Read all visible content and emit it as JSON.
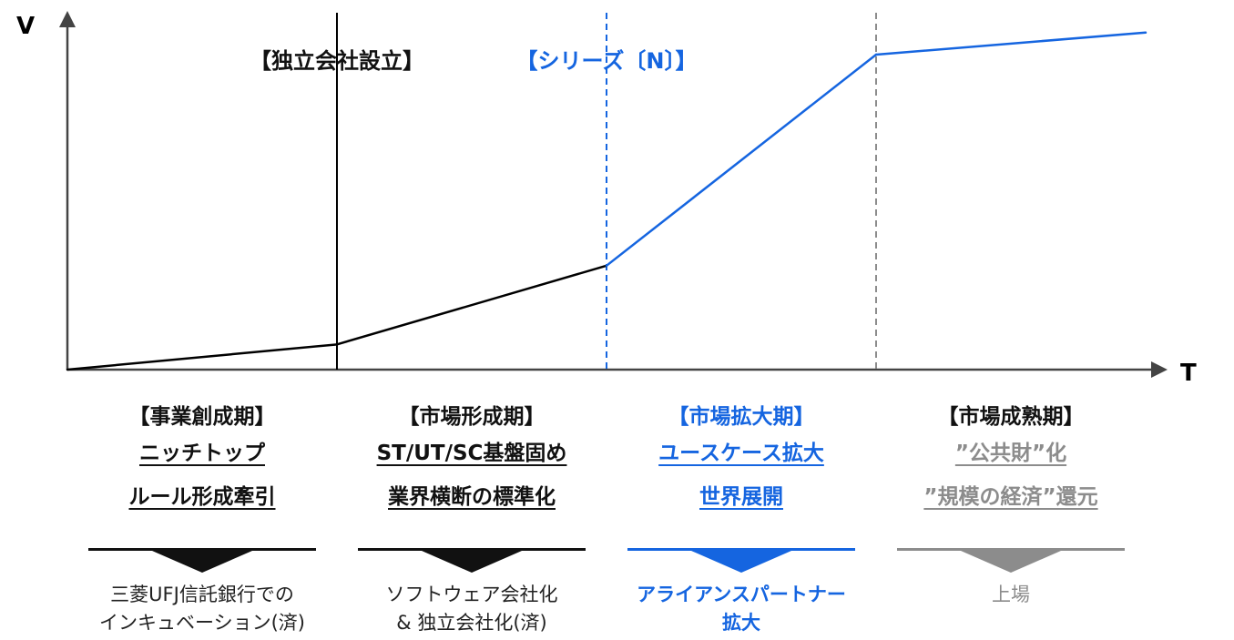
{
  "axes": {
    "y_label": "V",
    "x_label": "T"
  },
  "markers": [
    {
      "label": "【独立会社設立】",
      "color": "#000000",
      "style": "solid"
    },
    {
      "label": "【シリーズ〔N〕】",
      "color": "#1565e0",
      "style": "dashed"
    },
    {
      "label": "",
      "color": "#8c8c8c",
      "style": "dashed"
    }
  ],
  "curve": [
    {
      "t": 0,
      "v": 0.0
    },
    {
      "t": 1,
      "v": 0.08
    },
    {
      "t": 2,
      "v": 0.33
    },
    {
      "t": 3,
      "v": 1.0
    },
    {
      "t": 4,
      "v": 1.07
    }
  ],
  "phases": [
    {
      "title": "【事業創成期】",
      "lines": [
        "ニッチトップ",
        "ルール形成牽引"
      ],
      "result": [
        "三菱UFJ信託銀行での",
        "インキュベーション(済)"
      ],
      "color": "#111111",
      "result_bold": false,
      "result_color": "#222222"
    },
    {
      "title": "【市場形成期】",
      "lines": [
        "ST/UT/SC基盤固め",
        "業界横断の標準化"
      ],
      "result": [
        "ソフトウェア会社化",
        "& 独立会社化(済)"
      ],
      "color": "#111111",
      "result_bold": false,
      "result_color": "#222222"
    },
    {
      "title": "【市場拡大期】",
      "lines": [
        "ユースケース拡大",
        "世界展開"
      ],
      "result": [
        "アライアンスパートナー",
        "拡大"
      ],
      "color": "#1565e0",
      "result_bold": true,
      "result_color": "#1565e0"
    },
    {
      "title": "【市場成熟期】",
      "lines": [
        "”公共財”化",
        "”規模の経済”還元"
      ],
      "result": [
        "上場"
      ],
      "color": "#8c8c8c",
      "result_bold": false,
      "result_color": "#8c8c8c"
    }
  ],
  "colors": {
    "blue": "#1565e0",
    "gray": "#8c8c8c",
    "black": "#000000"
  }
}
